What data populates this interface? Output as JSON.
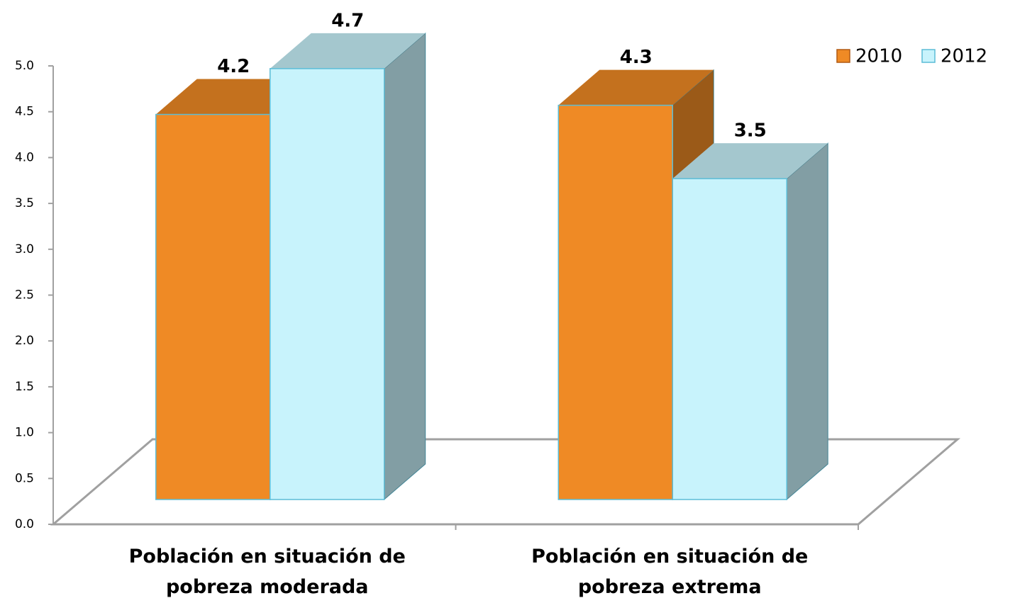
{
  "chart_data": {
    "type": "bar3d",
    "categories": [
      "Población en situación de pobreza moderada",
      "Población en situación de pobreza extrema"
    ],
    "series": [
      {
        "name": "2010",
        "color": "#ef8a25",
        "values": [
          4.2,
          4.3
        ]
      },
      {
        "name": "2012",
        "color": "#c8f3fc",
        "values": [
          4.7,
          3.5
        ]
      }
    ],
    "ylim": [
      0,
      5
    ],
    "yticks": [
      {
        "value": 0,
        "label": "0.0"
      },
      0.5,
      {
        "value": 1,
        "label": "1.0"
      },
      1.5,
      {
        "value": 2,
        "label": "2.0"
      },
      2.5,
      {
        "value": 3,
        "label": "3.0"
      },
      3.5,
      {
        "value": 4,
        "label": "4.0"
      },
      4.5,
      {
        "value": 5,
        "label": "5.0"
      }
    ],
    "legend": "top-right"
  }
}
